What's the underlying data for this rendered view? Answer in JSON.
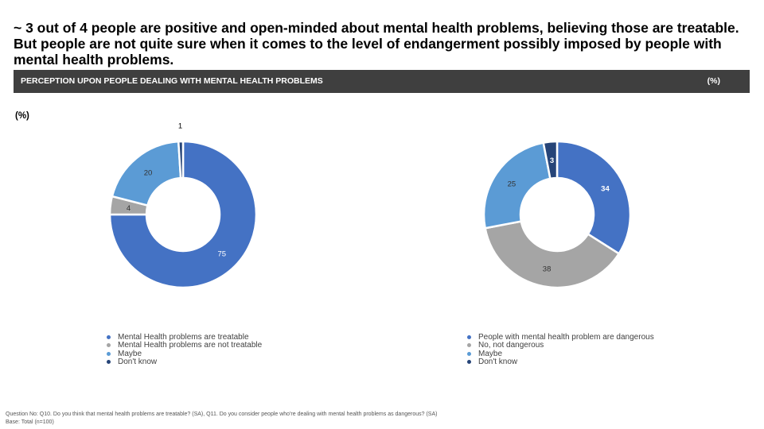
{
  "headline": "~ 3 out of 4 people are positive and open-minded about mental health problems, believing those are treatable. But people are not quite sure when it comes to the level of endangerment possibly imposed by people with mental health problems.",
  "section": {
    "title": "PERCEPTION UPON PEOPLE DEALING WITH MENTAL HEALTH PROBLEMS",
    "unit": "(%)"
  },
  "unit_label": "(%)",
  "colors": {
    "blue": "#4472c4",
    "gray": "#a5a5a5",
    "light_blue": "#5b9bd5",
    "navy": "#264478",
    "section_bar": "#3f3f3f"
  },
  "chart_data": [
    {
      "type": "pie",
      "variant": "donut",
      "categories": [
        "Mental Health problems are treatable",
        "Mental Health problems are not treatable",
        "Maybe",
        "Don't know"
      ],
      "values": [
        75,
        4,
        20,
        1
      ],
      "legend_position": "bottom",
      "legend": [
        "Mental Health problems are treatable",
        "Mental Health problems are not treatable",
        "Maybe",
        "Don't know"
      ]
    },
    {
      "type": "pie",
      "variant": "donut",
      "categories": [
        "People with mental health problem are dangerous",
        "No, not dangerous",
        "Maybe",
        "Don't know"
      ],
      "values": [
        34,
        38,
        25,
        3
      ],
      "legend_position": "bottom",
      "legend": [
        "People with mental health problem are dangerous",
        "No, not dangerous",
        "Maybe",
        "Don't know"
      ]
    }
  ],
  "footnote": {
    "question": "Question No: Q10. Do you think that mental health problems are treatable? (SA), Q11. Do you consider people who're dealing with mental health problems as dangerous? (SA)",
    "base": "Base: Total (n=100)"
  }
}
